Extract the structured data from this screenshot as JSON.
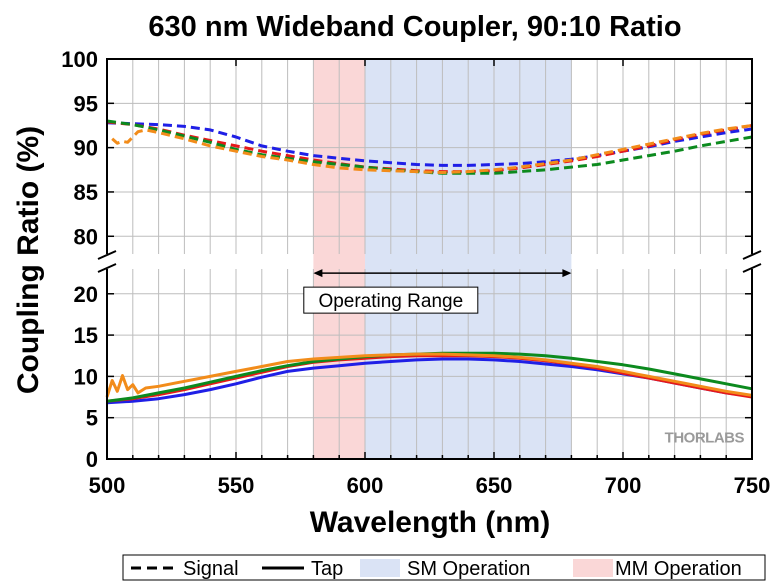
{
  "chart_data": {
    "type": "line",
    "title": "630 nm Wideband Coupler, 90:10 Ratio",
    "xlabel": "Wavelength (nm)",
    "ylabel": "Coupling Ratio (%)",
    "xlim": [
      500,
      750
    ],
    "x_ticks": [
      "500",
      "550",
      "600",
      "650",
      "700",
      "750"
    ],
    "upper_panel": {
      "ylim": [
        78,
        100
      ],
      "y_ticks": [
        "80",
        "85",
        "90",
        "95",
        "100"
      ]
    },
    "lower_panel": {
      "ylim": [
        0,
        23
      ],
      "y_ticks": [
        "0",
        "5",
        "10",
        "15",
        "20"
      ]
    },
    "axis_break": true,
    "grid": true,
    "regions": [
      {
        "name": "MM Operation",
        "x": [
          580,
          600
        ],
        "color": "#fad7d7"
      },
      {
        "name": "SM Operation",
        "x": [
          600,
          680
        ],
        "color": "#dae3f5"
      }
    ],
    "annotation": {
      "text": "Operating Range",
      "x_range": [
        580,
        680
      ],
      "y": 22.5
    },
    "watermark": "THORLABS",
    "legend": {
      "placement": "bottom",
      "items": [
        {
          "label": "Signal",
          "style": "dashed"
        },
        {
          "label": "Tap",
          "style": "solid"
        },
        {
          "label": "SM Operation",
          "style": "patch-blue"
        },
        {
          "label": "MM Operation",
          "style": "patch-red"
        }
      ]
    },
    "series": [
      {
        "role": "Signal",
        "color": "#1f1fe6",
        "style": "dashed",
        "panel": "upper",
        "x": [
          500,
          510,
          520,
          530,
          540,
          550,
          560,
          570,
          580,
          590,
          600,
          610,
          620,
          630,
          640,
          650,
          660,
          670,
          680,
          690,
          700,
          710,
          720,
          730,
          740,
          750
        ],
        "y": [
          92.8,
          92.7,
          92.6,
          92.4,
          92.0,
          91.2,
          90.2,
          89.6,
          89.1,
          88.8,
          88.5,
          88.3,
          88.1,
          88.0,
          88.0,
          88.1,
          88.2,
          88.4,
          88.7,
          89.1,
          89.6,
          90.1,
          90.7,
          91.2,
          91.7,
          92.1
        ]
      },
      {
        "role": "Signal",
        "color": "#e61919",
        "style": "dashed",
        "panel": "upper",
        "x": [
          500,
          510,
          520,
          530,
          540,
          550,
          560,
          570,
          580,
          590,
          600,
          610,
          620,
          630,
          640,
          650,
          660,
          670,
          680,
          690,
          700,
          710,
          720,
          730,
          740,
          750
        ],
        "y": [
          92.9,
          92.6,
          92.1,
          91.4,
          90.8,
          90.2,
          89.6,
          89.1,
          88.6,
          88.2,
          87.8,
          87.6,
          87.4,
          87.3,
          87.3,
          87.4,
          87.7,
          88.1,
          88.5,
          89.0,
          89.6,
          90.2,
          90.9,
          91.5,
          92.0,
          92.5
        ]
      },
      {
        "role": "Signal",
        "color": "#0c8a1e",
        "style": "dashed",
        "panel": "upper",
        "x": [
          500,
          510,
          520,
          530,
          540,
          550,
          560,
          570,
          580,
          590,
          600,
          610,
          620,
          630,
          640,
          650,
          660,
          670,
          680,
          690,
          700,
          710,
          720,
          730,
          740,
          750
        ],
        "y": [
          93.0,
          92.6,
          92.0,
          91.3,
          90.6,
          89.8,
          89.2,
          88.8,
          88.4,
          88.1,
          87.8,
          87.5,
          87.3,
          87.1,
          87.1,
          87.1,
          87.3,
          87.5,
          87.8,
          88.1,
          88.6,
          89.1,
          89.6,
          90.2,
          90.7,
          91.2
        ]
      },
      {
        "role": "Signal",
        "color": "#f28c1a",
        "style": "dashed",
        "panel": "upper",
        "x": [
          502,
          504,
          506,
          508,
          510,
          512,
          515,
          520,
          530,
          540,
          550,
          560,
          570,
          580,
          590,
          600,
          610,
          620,
          630,
          640,
          650,
          660,
          670,
          680,
          690,
          700,
          710,
          720,
          730,
          740,
          750
        ],
        "y": [
          91.0,
          90.5,
          90.7,
          90.6,
          91.2,
          91.8,
          92.0,
          91.7,
          91.0,
          90.2,
          89.6,
          89.0,
          88.6,
          88.1,
          87.7,
          87.5,
          87.4,
          87.3,
          87.2,
          87.3,
          87.5,
          87.8,
          88.2,
          88.6,
          89.2,
          89.8,
          90.4,
          91.0,
          91.6,
          92.1,
          92.5
        ]
      },
      {
        "role": "Tap",
        "color": "#1f1fe6",
        "style": "solid",
        "panel": "lower",
        "x": [
          500,
          510,
          520,
          530,
          540,
          550,
          560,
          570,
          580,
          590,
          600,
          610,
          620,
          630,
          640,
          650,
          660,
          670,
          680,
          690,
          700,
          710,
          720,
          730,
          740,
          750
        ],
        "y": [
          6.8,
          7.0,
          7.3,
          7.8,
          8.4,
          9.1,
          9.9,
          10.6,
          11.0,
          11.3,
          11.6,
          11.8,
          12.0,
          12.1,
          12.1,
          12.0,
          11.8,
          11.5,
          11.2,
          10.8,
          10.3,
          9.8,
          9.2,
          8.6,
          8.0,
          7.6
        ]
      },
      {
        "role": "Tap",
        "color": "#e61919",
        "style": "solid",
        "panel": "lower",
        "x": [
          500,
          510,
          520,
          530,
          540,
          550,
          560,
          570,
          580,
          590,
          600,
          610,
          620,
          630,
          640,
          650,
          660,
          670,
          680,
          690,
          700,
          710,
          720,
          730,
          740,
          750
        ],
        "y": [
          7.0,
          7.3,
          7.8,
          8.4,
          9.1,
          9.8,
          10.5,
          11.2,
          11.7,
          12.0,
          12.2,
          12.4,
          12.5,
          12.5,
          12.5,
          12.4,
          12.2,
          11.9,
          11.5,
          11.0,
          10.4,
          9.8,
          9.2,
          8.6,
          8.0,
          7.5
        ]
      },
      {
        "role": "Tap",
        "color": "#0c8a1e",
        "style": "solid",
        "panel": "lower",
        "x": [
          500,
          510,
          520,
          530,
          540,
          550,
          560,
          570,
          580,
          590,
          600,
          610,
          620,
          630,
          640,
          650,
          660,
          670,
          680,
          690,
          700,
          710,
          720,
          730,
          740,
          750
        ],
        "y": [
          7.0,
          7.4,
          8.0,
          8.6,
          9.3,
          10.0,
          10.7,
          11.3,
          11.8,
          12.1,
          12.4,
          12.6,
          12.7,
          12.8,
          12.8,
          12.8,
          12.7,
          12.5,
          12.2,
          11.8,
          11.4,
          10.9,
          10.3,
          9.7,
          9.1,
          8.5
        ]
      },
      {
        "role": "Tap",
        "color": "#f28c1a",
        "style": "solid",
        "panel": "lower",
        "x": [
          500,
          502,
          504,
          506,
          508,
          510,
          512,
          515,
          520,
          530,
          540,
          550,
          560,
          570,
          580,
          590,
          600,
          610,
          620,
          630,
          640,
          650,
          660,
          670,
          680,
          690,
          700,
          710,
          720,
          730,
          740,
          750
        ],
        "y": [
          7.5,
          9.5,
          8.2,
          10.1,
          8.4,
          9.0,
          8.0,
          8.6,
          8.8,
          9.4,
          10.0,
          10.6,
          11.2,
          11.8,
          12.1,
          12.3,
          12.5,
          12.6,
          12.7,
          12.7,
          12.6,
          12.5,
          12.3,
          12.0,
          11.6,
          11.2,
          10.6,
          10.0,
          9.4,
          8.8,
          8.2,
          7.7
        ]
      }
    ]
  }
}
